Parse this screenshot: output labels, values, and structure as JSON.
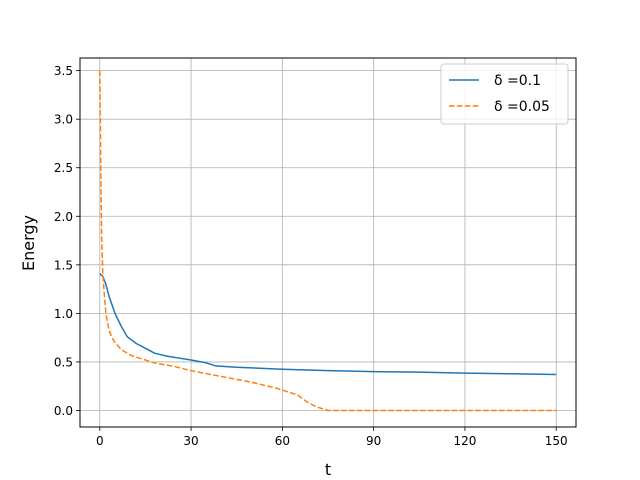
{
  "chart_data": {
    "type": "line",
    "title": "",
    "xlabel": "t",
    "ylabel": "Energy",
    "xlim": [
      -6.5,
      156.5
    ],
    "ylim": [
      -0.17,
      3.63
    ],
    "xticks": [
      0,
      30,
      60,
      90,
      120,
      150
    ],
    "yticks": [
      0.0,
      0.5,
      1.0,
      1.5,
      2.0,
      2.5,
      3.0,
      3.5
    ],
    "xtick_labels": [
      "0",
      "30",
      "60",
      "90",
      "120",
      "150"
    ],
    "ytick_labels": [
      "0.0",
      "0.5",
      "1.0",
      "1.5",
      "2.0",
      "2.5",
      "3.0",
      "3.5"
    ],
    "grid": true,
    "legend_position": "top-right",
    "series": [
      {
        "name": "δ =0.1",
        "color": "#1f77b4",
        "dash": "solid",
        "x": [
          0,
          1,
          2,
          3,
          5,
          7,
          9,
          12,
          15,
          18,
          22,
          26,
          30,
          35,
          38,
          45,
          60,
          75,
          90,
          105,
          120,
          135,
          150
        ],
        "y": [
          1.41,
          1.38,
          1.3,
          1.18,
          1.0,
          0.87,
          0.76,
          0.69,
          0.64,
          0.59,
          0.56,
          0.54,
          0.52,
          0.49,
          0.46,
          0.445,
          0.425,
          0.41,
          0.4,
          0.395,
          0.385,
          0.378,
          0.37
        ]
      },
      {
        "name": "δ =0.05",
        "color": "#ff7f0e",
        "dash": "dashed",
        "x": [
          0,
          0.3,
          0.6,
          1,
          1.5,
          2,
          3,
          4,
          5,
          7,
          10,
          14,
          18,
          25,
          30,
          40,
          50,
          58,
          65,
          68,
          71,
          75,
          80,
          100,
          120,
          150
        ],
        "y": [
          3.5,
          2.6,
          1.8,
          1.4,
          1.2,
          1.0,
          0.83,
          0.75,
          0.7,
          0.63,
          0.57,
          0.53,
          0.49,
          0.45,
          0.41,
          0.35,
          0.29,
          0.23,
          0.16,
          0.09,
          0.04,
          0.0,
          0.0,
          0.0,
          0.0,
          0.0
        ]
      }
    ]
  }
}
